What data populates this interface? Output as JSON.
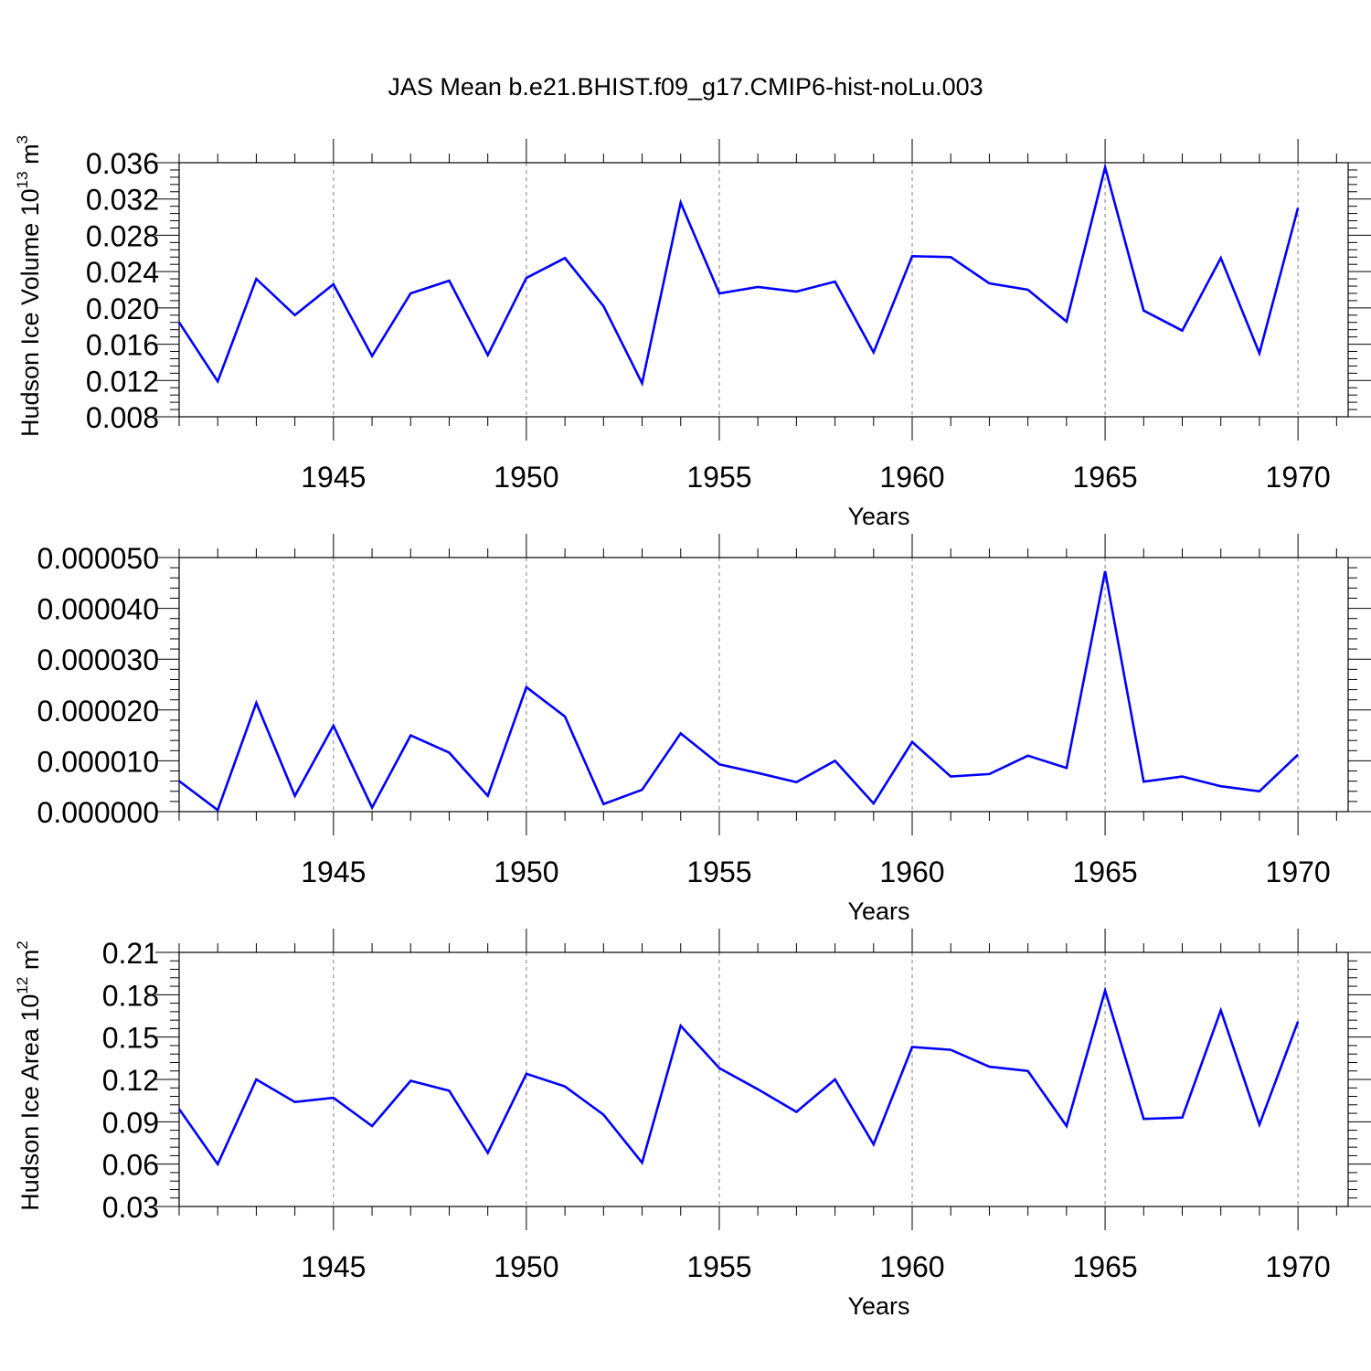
{
  "title": "JAS Mean b.e21.BHIST.f09_g17.CMIP6-hist-noLu.003",
  "colors": {
    "line": "#0000ff",
    "axis": "#000000",
    "grid": "#808080",
    "background": "#ffffff"
  },
  "chart_data": [
    {
      "type": "line",
      "name": "ice-volume",
      "ylabel": "Hudson Ice Volume 10",
      "ylabel_exp": "13",
      "ylabel_unit": " m",
      "ylabel_unit_exp": "3",
      "xlabel": "Years",
      "xlim": [
        1941,
        1971.3
      ],
      "ylim": [
        0.008,
        0.036
      ],
      "yticks": [
        0.008,
        0.012,
        0.016,
        0.02,
        0.024,
        0.028,
        0.032,
        0.036
      ],
      "ytick_labels": [
        "0.008",
        "0.012",
        "0.016",
        "0.020",
        "0.024",
        "0.028",
        "0.032",
        "0.036"
      ],
      "xticks": [
        1945,
        1950,
        1955,
        1960,
        1965,
        1970
      ],
      "xtick_labels": [
        "1945",
        "1950",
        "1955",
        "1960",
        "1965",
        "1970"
      ],
      "grid_x": true,
      "x": [
        1941,
        1942,
        1943,
        1944,
        1945,
        1946,
        1947,
        1948,
        1949,
        1950,
        1951,
        1952,
        1953,
        1954,
        1955,
        1956,
        1957,
        1958,
        1959,
        1960,
        1961,
        1962,
        1963,
        1964,
        1965,
        1966,
        1967,
        1968,
        1969,
        1970
      ],
      "values": [
        0.0184,
        0.0119,
        0.0232,
        0.0192,
        0.0226,
        0.0147,
        0.0216,
        0.023,
        0.0148,
        0.0233,
        0.0255,
        0.0202,
        0.0117,
        0.0316,
        0.0216,
        0.0223,
        0.0218,
        0.0229,
        0.0151,
        0.0257,
        0.0256,
        0.0227,
        0.022,
        0.0185,
        0.0355,
        0.0197,
        0.0175,
        0.0255,
        0.015,
        0.031
      ]
    },
    {
      "type": "line",
      "name": "snow",
      "ylabel": "",
      "xlabel": "Years",
      "xlim": [
        1941,
        1971.3
      ],
      "ylim": [
        0.0,
        5e-05
      ],
      "yticks": [
        0.0,
        1e-05,
        2e-05,
        3e-05,
        4e-05,
        5e-05
      ],
      "ytick_labels": [
        "0.000000",
        "0.000010",
        "0.000020",
        "0.000030",
        "0.000040",
        "0.000050"
      ],
      "xticks": [
        1945,
        1950,
        1955,
        1960,
        1965,
        1970
      ],
      "xtick_labels": [
        "1945",
        "1950",
        "1955",
        "1960",
        "1965",
        "1970"
      ],
      "grid_x": true,
      "x": [
        1941,
        1942,
        1943,
        1944,
        1945,
        1946,
        1947,
        1948,
        1949,
        1950,
        1951,
        1952,
        1953,
        1954,
        1955,
        1956,
        1957,
        1958,
        1959,
        1960,
        1961,
        1962,
        1963,
        1964,
        1965,
        1966,
        1967,
        1968,
        1969,
        1970
      ],
      "values": [
        6e-06,
        3e-07,
        2.14e-05,
        3.1e-06,
        1.69e-05,
        8e-07,
        1.5e-05,
        1.16e-05,
        3.1e-06,
        2.45e-05,
        1.87e-05,
        1.5e-06,
        4.3e-06,
        1.54e-05,
        9.3e-06,
        7.6e-06,
        5.8e-06,
        1e-05,
        1.6e-06,
        1.37e-05,
        6.9e-06,
        7.4e-06,
        1.1e-05,
        8.6e-06,
        4.73e-05,
        5.9e-06,
        6.9e-06,
        5e-06,
        4e-06,
        1.12e-05
      ]
    },
    {
      "type": "line",
      "name": "ice-area",
      "ylabel": "Hudson Ice Area 10",
      "ylabel_exp": "12",
      "ylabel_unit": " m",
      "ylabel_unit_exp": "2",
      "xlabel": "Years",
      "xlim": [
        1941,
        1971.3
      ],
      "ylim": [
        0.03,
        0.21
      ],
      "yticks": [
        0.03,
        0.06,
        0.09,
        0.12,
        0.15,
        0.18,
        0.21
      ],
      "ytick_labels": [
        "0.03",
        "0.06",
        "0.09",
        "0.12",
        "0.15",
        "0.18",
        "0.21"
      ],
      "xticks": [
        1945,
        1950,
        1955,
        1960,
        1965,
        1970
      ],
      "xtick_labels": [
        "1945",
        "1950",
        "1955",
        "1960",
        "1965",
        "1970"
      ],
      "grid_x": true,
      "x": [
        1941,
        1942,
        1943,
        1944,
        1945,
        1946,
        1947,
        1948,
        1949,
        1950,
        1951,
        1952,
        1953,
        1954,
        1955,
        1956,
        1957,
        1958,
        1959,
        1960,
        1961,
        1962,
        1963,
        1964,
        1965,
        1966,
        1967,
        1968,
        1969,
        1970
      ],
      "values": [
        0.099,
        0.06,
        0.12,
        0.104,
        0.107,
        0.087,
        0.119,
        0.112,
        0.068,
        0.124,
        0.115,
        0.095,
        0.061,
        0.158,
        0.128,
        0.113,
        0.097,
        0.12,
        0.074,
        0.143,
        0.141,
        0.129,
        0.126,
        0.087,
        0.183,
        0.092,
        0.093,
        0.169,
        0.088,
        0.161
      ]
    }
  ]
}
